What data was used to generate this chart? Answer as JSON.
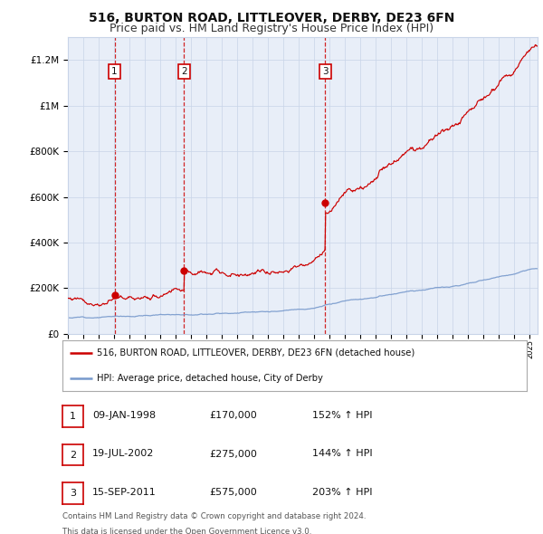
{
  "title": "516, BURTON ROAD, LITTLEOVER, DERBY, DE23 6FN",
  "subtitle": "Price paid vs. HM Land Registry's House Price Index (HPI)",
  "red_label": "516, BURTON ROAD, LITTLEOVER, DERBY, DE23 6FN (detached house)",
  "blue_label": "HPI: Average price, detached house, City of Derby",
  "footnote1": "Contains HM Land Registry data © Crown copyright and database right 2024.",
  "footnote2": "This data is licensed under the Open Government Licence v3.0.",
  "sales": [
    {
      "num": 1,
      "date": "09-JAN-1998",
      "price": 170000,
      "hpi_change": "152% ↑ HPI",
      "x": 1998.03
    },
    {
      "num": 2,
      "date": "19-JUL-2002",
      "price": 275000,
      "hpi_change": "144% ↑ HPI",
      "x": 2002.54
    },
    {
      "num": 3,
      "date": "15-SEP-2011",
      "price": 575000,
      "hpi_change": "203% ↑ HPI",
      "x": 2011.71
    }
  ],
  "yticks": [
    0,
    200000,
    400000,
    600000,
    800000,
    1000000,
    1200000
  ],
  "ylim": [
    0,
    1300000
  ],
  "xlim_start": 1995.0,
  "xlim_end": 2025.5,
  "background_color": "#ffffff",
  "plot_bg_color": "#e8eef8",
  "grid_color": "#c8d4e8",
  "red_color": "#cc0000",
  "blue_color": "#7799cc",
  "title_fontsize": 10,
  "subtitle_fontsize": 9,
  "hpi_seed": 12,
  "red_seed": 77
}
